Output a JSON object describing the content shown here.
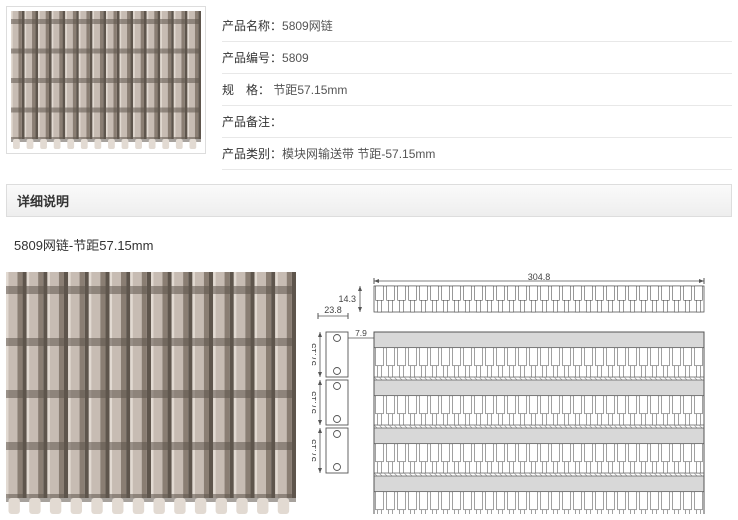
{
  "product": {
    "name_label": "产品名称：",
    "name_value": "5809网链",
    "code_label": "产品编号：",
    "code_value": "5809",
    "spec_label": "规　格：",
    "spec_value": " 节距57.15mm",
    "note_label": "产品备注：",
    "note_value": "",
    "category_label": "产品类别：",
    "category_value": "模块网输送带 节距-57.15mm"
  },
  "detail": {
    "header": "详细说明",
    "title": "5809网链-节距57.15mm"
  },
  "photo": {
    "body_color": "#c7bcb3",
    "highlight_color": "#e2dad2",
    "shadow_color": "#8a7e73",
    "slot_color": "#5e554c",
    "slat_count": 14,
    "row_count": 5,
    "background": "#ffffff"
  },
  "diagram": {
    "line_color": "#555555",
    "fill_color": "#d8d8d8",
    "hatch_color": "#9a9a9a",
    "dims": {
      "top_width": "304.8",
      "top_height": "14.3",
      "side_offset": "23.8",
      "bracket_gap": "7.9",
      "pitch1": "57.15",
      "pitch2": "57.15",
      "pitch3": "57.15"
    },
    "cols": 30,
    "rows": 4
  }
}
